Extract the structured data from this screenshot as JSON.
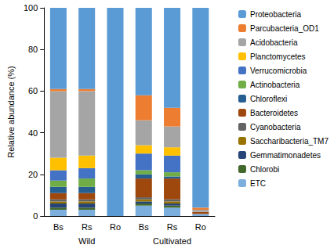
{
  "chart_data": {
    "type": "bar",
    "stacked": true,
    "y_label": "Relative abundance (%)",
    "categories": [
      "Bs",
      "Rs",
      "Ro",
      "Bs",
      "Rs",
      "Ro"
    ],
    "groups": [
      "Wild",
      "Cultivated"
    ],
    "ylim": [
      0,
      100
    ],
    "yticks": [
      0,
      20,
      40,
      60,
      80,
      100
    ],
    "grid": false,
    "legend": "right",
    "series": [
      {
        "name": "Proteobacteria",
        "color": "#5b9bd5",
        "values": [
          39,
          39,
          100,
          42,
          48,
          96
        ]
      },
      {
        "name": "Parcubacteria_OD1",
        "color": "#ed7d31",
        "values": [
          1,
          1,
          0,
          12,
          9,
          1
        ]
      },
      {
        "name": "Acidobacteria",
        "color": "#a5a5a5",
        "values": [
          32,
          31,
          0,
          12,
          10,
          1
        ]
      },
      {
        "name": "Planctomycetes",
        "color": "#ffc000",
        "values": [
          6,
          6,
          0,
          4,
          4,
          0
        ]
      },
      {
        "name": "Verrucomicrobia",
        "color": "#4472c4",
        "values": [
          5,
          5,
          0,
          8,
          8,
          0
        ]
      },
      {
        "name": "Actinobacteria",
        "color": "#70ad47",
        "values": [
          3,
          4,
          0,
          2,
          2,
          0
        ]
      },
      {
        "name": "Chloroflexi",
        "color": "#255e91",
        "values": [
          3,
          3,
          0,
          2,
          1,
          0
        ]
      },
      {
        "name": "Bacteroidetes",
        "color": "#9e480e",
        "values": [
          3,
          3,
          0,
          9,
          10,
          1
        ]
      },
      {
        "name": "Cyanobacteria",
        "color": "#636363",
        "values": [
          1,
          1,
          0,
          1,
          1,
          0
        ]
      },
      {
        "name": "Saccharibacteria_TM7",
        "color": "#997300",
        "values": [
          1,
          1,
          0,
          1,
          1,
          0
        ]
      },
      {
        "name": "Gemmatimonadetes",
        "color": "#264478",
        "values": [
          2,
          2,
          0,
          1,
          1,
          0
        ]
      },
      {
        "name": "Chlorobi",
        "color": "#43682b",
        "values": [
          1,
          1,
          0,
          1,
          1,
          0
        ]
      },
      {
        "name": "ETC",
        "color": "#7cafdd",
        "values": [
          3,
          3,
          0,
          5,
          4,
          1
        ]
      }
    ]
  }
}
